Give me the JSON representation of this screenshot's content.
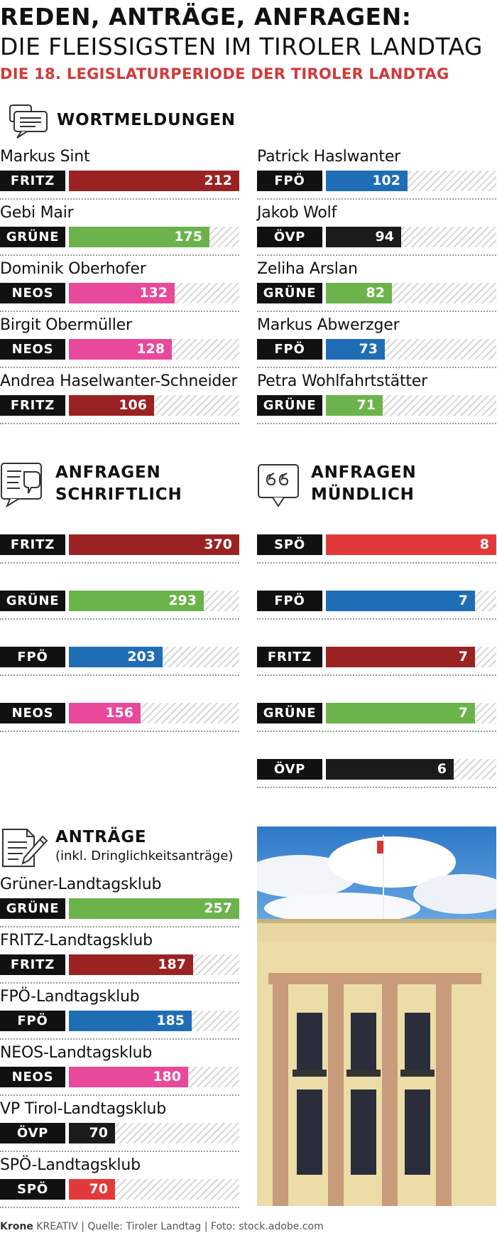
{
  "header": {
    "title_line1": "REDEN, ANTRÄGE, ANFRAGEN:",
    "title_line2": "DIE FLEISSIGSTEN IM TIROLER LANDTAG",
    "subtitle": "DIE 18. LEGISLATURPERIODE DER TIROLER LANDTAG"
  },
  "colors": {
    "FRITZ": "#9b2222",
    "GRÜNE": "#6bb34a",
    "NEOS": "#e8499a",
    "FPÖ": "#1f6eb5",
    "ÖVP": "#1b1b1b",
    "SPÖ": "#e23a3a"
  },
  "chart_data": [
    {
      "type": "bar",
      "title": "WORTMELDUNGEN",
      "xlim": [
        0,
        212
      ],
      "items": [
        {
          "name": "Markus Sint",
          "party": "FRITZ",
          "value": 212
        },
        {
          "name": "Gebi Mair",
          "party": "GRÜNE",
          "value": 175
        },
        {
          "name": "Dominik Oberhofer",
          "party": "NEOS",
          "value": 132
        },
        {
          "name": "Birgit Obermüller",
          "party": "NEOS",
          "value": 128
        },
        {
          "name": "Andrea Haselwanter-Schneider",
          "party": "FRITZ",
          "value": 106
        },
        {
          "name": "Patrick Haslwanter",
          "party": "FPÖ",
          "value": 102
        },
        {
          "name": "Jakob Wolf",
          "party": "ÖVP",
          "value": 94
        },
        {
          "name": "Zeliha Arslan",
          "party": "GRÜNE",
          "value": 82
        },
        {
          "name": "Markus Abwerzger",
          "party": "FPÖ",
          "value": 73
        },
        {
          "name": "Petra Wohlfahrtstätter",
          "party": "GRÜNE",
          "value": 71
        }
      ]
    },
    {
      "type": "bar",
      "title": "ANFRAGEN SCHRIFTLICH",
      "xlim": [
        0,
        370
      ],
      "items": [
        {
          "party": "FRITZ",
          "value": 370
        },
        {
          "party": "GRÜNE",
          "value": 293
        },
        {
          "party": "FPÖ",
          "value": 203
        },
        {
          "party": "NEOS",
          "value": 156
        }
      ]
    },
    {
      "type": "bar",
      "title": "ANFRAGEN MÜNDLICH",
      "xlim": [
        0,
        8
      ],
      "items": [
        {
          "party": "SPÖ",
          "value": 8
        },
        {
          "party": "FPÖ",
          "value": 7
        },
        {
          "party": "FRITZ",
          "value": 7
        },
        {
          "party": "GRÜNE",
          "value": 7
        },
        {
          "party": "ÖVP",
          "value": 6
        }
      ]
    },
    {
      "type": "bar",
      "title": "ANTRÄGE",
      "subtitle": "(inkl. Dringlichkeitsanträge)",
      "xlim": [
        0,
        257
      ],
      "items": [
        {
          "name": "Grüner-Landtagsklub",
          "party": "GRÜNE",
          "value": 257
        },
        {
          "name": "FRITZ-Landtagsklub",
          "party": "FRITZ",
          "value": 187
        },
        {
          "name": "FPÖ-Landtagsklub",
          "party": "FPÖ",
          "value": 185
        },
        {
          "name": "NEOS-Landtagsklub",
          "party": "NEOS",
          "value": 180
        },
        {
          "name": "VP Tirol-Landtagsklub",
          "party": "ÖVP",
          "value": 70
        },
        {
          "name": "SPÖ-Landtagsklub",
          "party": "SPÖ",
          "value": 70
        }
      ]
    }
  ],
  "sections": {
    "wortmeldungen": "WORTMELDUNGEN",
    "schriftlich_l1": "ANFRAGEN",
    "schriftlich_l2": "SCHRIFTLICH",
    "muendlich_l1": "ANFRAGEN",
    "muendlich_l2": "MÜNDLICH",
    "antraege": "ANTRÄGE",
    "antraege_sub": "(inkl. Dringlichkeitsanträge)"
  },
  "footer": {
    "brand": "Krone",
    "rest": " KREATIV | Quelle: Tiroler Landtag | Foto: stock.adobe.com"
  }
}
